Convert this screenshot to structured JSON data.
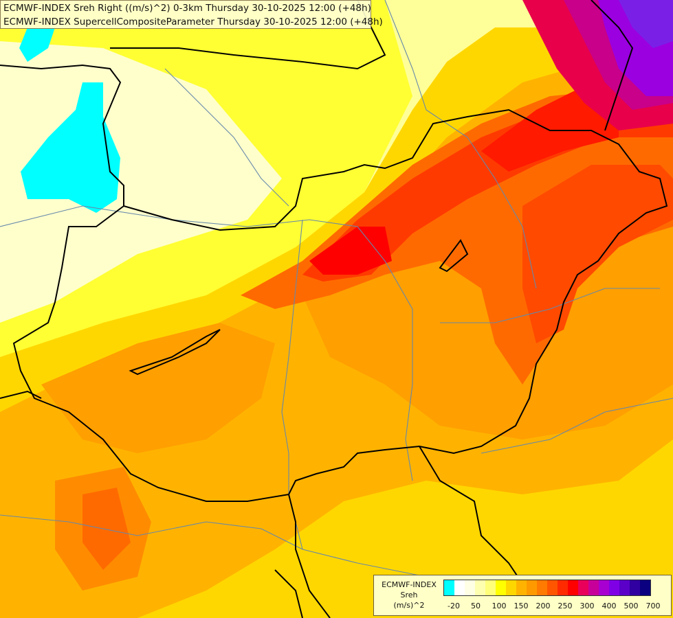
{
  "title": {
    "line1": "ECMWF-INDEX Sreh Right ((m/s)^2) 0-3km Thursday 30-10-2025 12:00 (+48h)",
    "line2": "ECMWF-INDEX SupercellCompositeParameter Thursday 30-10-2025 12:00 (+48h)"
  },
  "legend": {
    "source": "ECMWF-INDEX",
    "variable": "Sreh",
    "unit": "(m/s)^2",
    "ticks": [
      "-20",
      "50",
      "100",
      "150",
      "200",
      "250",
      "300",
      "400",
      "500",
      "700"
    ],
    "colors": [
      "#00ffff",
      "#ffffff",
      "#ffffe6",
      "#ffffb0",
      "#ffff7a",
      "#ffff00",
      "#ffd700",
      "#ffb300",
      "#ff9900",
      "#ff7a00",
      "#ff5500",
      "#ff2a00",
      "#ff0000",
      "#e8005a",
      "#c8009a",
      "#a800d0",
      "#8000e6",
      "#5a00c8",
      "#3000a0",
      "#0a0080"
    ]
  },
  "palette": {
    "very_light": "#ffffcc",
    "light": "#ffff99",
    "yellow": "#ffff33",
    "gold": "#ffd700",
    "orange_light": "#ffc000",
    "orange": "#ffa500",
    "orange_dark": "#ff8800",
    "red_orange": "#ff5a00",
    "red": "#ff2000",
    "deep_red": "#ff0000",
    "magenta": "#d6007a",
    "purple": "#9a00e0",
    "cyan": "#00ffff",
    "border": "#000000",
    "river": "#6688aa"
  }
}
